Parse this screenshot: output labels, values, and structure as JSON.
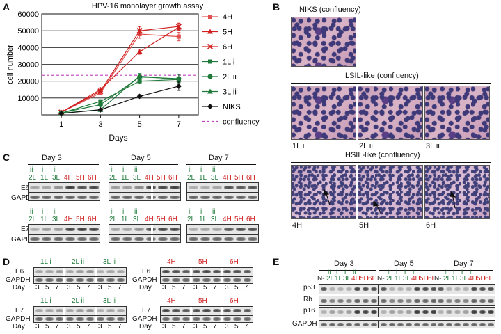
{
  "panels": {
    "A": "A",
    "B": "B",
    "C": "C",
    "D": "D",
    "E": "E"
  },
  "panelA": {
    "legend": [
      {
        "label": "4H",
        "color": "#e05050",
        "marker": "square",
        "dash": false
      },
      {
        "label": "5H",
        "color": "#d02020",
        "marker": "triangle",
        "dash": false
      },
      {
        "label": "6H",
        "color": "#d02020",
        "marker": "x",
        "dash": false
      },
      {
        "label": "1L i",
        "color": "#1f7a3a",
        "marker": "square",
        "dash": false
      },
      {
        "label": "2L ii",
        "color": "#1f7a3a",
        "marker": "circle",
        "dash": false
      },
      {
        "label": "3L ii",
        "color": "#1f7a3a",
        "marker": "triangle",
        "dash": false
      },
      {
        "label": "NIKS",
        "color": "#111111",
        "marker": "diamond",
        "dash": false
      },
      {
        "label": "confluency",
        "color": "#c040c0",
        "marker": "none",
        "dash": true
      }
    ]
  },
  "chart_data": {
    "type": "line",
    "title": "HPV-16 monolayer growth assay",
    "xlabel": "Days",
    "ylabel": "cell number",
    "x": [
      1,
      3,
      5,
      7
    ],
    "x_ticks": [
      "1",
      "3",
      "5",
      "7"
    ],
    "y_ticks": [
      "10000",
      "20000",
      "30000",
      "40000",
      "50000",
      "60000"
    ],
    "xlim": [
      0,
      8
    ],
    "ylim": [
      0,
      60000
    ],
    "grid": "horizontal",
    "legend_position": "right",
    "confluency": 23500,
    "series": [
      {
        "name": "4H",
        "color": "#e05050",
        "marker": "square",
        "values": [
          1500,
          13000,
          48000,
          46500
        ],
        "err": [
          300,
          1000,
          2500,
          2500
        ]
      },
      {
        "name": "5H",
        "color": "#d02020",
        "marker": "triangle",
        "values": [
          1500,
          15000,
          37500,
          52000
        ],
        "err": [
          300,
          1000,
          1500,
          2000
        ]
      },
      {
        "name": "6H",
        "color": "#d02020",
        "marker": "x",
        "values": [
          1500,
          14000,
          50000,
          52500
        ],
        "err": [
          300,
          1000,
          2500,
          2000
        ]
      },
      {
        "name": "1L i",
        "color": "#1f7a3a",
        "marker": "square",
        "values": [
          1000,
          8000,
          20000,
          21000
        ],
        "err": [
          200,
          800,
          1500,
          1500
        ]
      },
      {
        "name": "2L ii",
        "color": "#1f7a3a",
        "marker": "circle",
        "values": [
          1200,
          6000,
          22500,
          21500
        ],
        "err": [
          200,
          800,
          2000,
          2500
        ]
      },
      {
        "name": "3L ii",
        "color": "#1f7a3a",
        "marker": "triangle",
        "values": [
          1000,
          3000,
          23000,
          21000
        ],
        "err": [
          200,
          500,
          1500,
          1500
        ]
      },
      {
        "name": "NIKS",
        "color": "#111111",
        "marker": "diamond",
        "values": [
          800,
          3000,
          11000,
          17000
        ],
        "err": [
          200,
          300,
          500,
          2500
        ]
      }
    ]
  },
  "panelB": {
    "niks_title": "NIKS (confluency)",
    "lsil_title": "LSIL-like  (confluency)",
    "hsil_title": "HSIL-like (confluency)",
    "lsil_labels": [
      "1L i",
      "2L ii",
      "3L ii"
    ],
    "hsil_labels": [
      "4H",
      "5H",
      "6H"
    ]
  },
  "panelC": {
    "days": [
      "Day 3",
      "Day 5",
      "Day 7"
    ],
    "top_labels": [
      "ii",
      "i",
      "ii"
    ],
    "lane_labels_green": [
      "2L",
      "1L",
      "3L"
    ],
    "lane_labels_red": [
      "4H",
      "5H",
      "6H"
    ],
    "rows": [
      "E6",
      "GAPDH",
      "E7",
      "GAPDH"
    ]
  },
  "panelD": {
    "low_groups": [
      "1L i",
      "2L ii",
      "3L ii"
    ],
    "high_groups": [
      "4H",
      "5H",
      "6H"
    ],
    "row_labels": [
      "E6",
      "GAPDH",
      "E7",
      "GAPDH"
    ],
    "day_label": "Day",
    "day_ticks": [
      "3",
      "5",
      "7"
    ]
  },
  "panelE": {
    "days": [
      "Day 3",
      "Day 5",
      "Day 7"
    ],
    "lane_n": "N-",
    "top_labels": [
      "ii",
      "i",
      "i",
      "ii"
    ],
    "lane_labels_green": [
      "2L",
      "1L",
      "3L"
    ],
    "lane_labels_red": [
      "4H",
      "5H",
      "6H"
    ],
    "rows": [
      "p53",
      "Rb",
      "p16",
      "GAPDH"
    ]
  }
}
